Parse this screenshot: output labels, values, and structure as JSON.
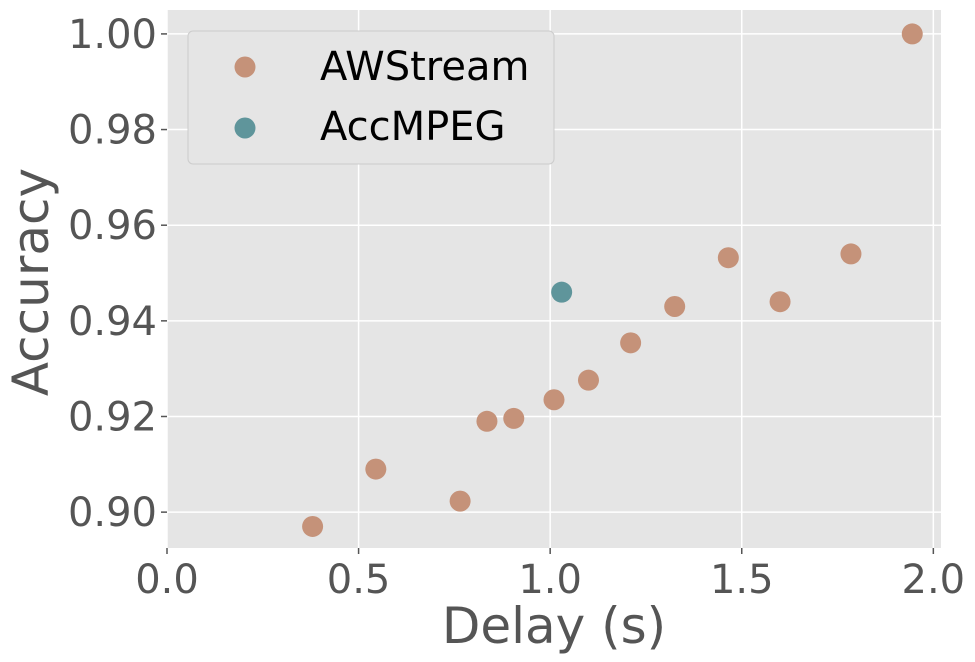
{
  "chart_data": {
    "type": "scatter",
    "title": "",
    "xlabel": "Delay (s)",
    "ylabel": "Accuracy",
    "xlim": [
      0.0,
      2.02
    ],
    "ylim": [
      0.8925,
      1.005
    ],
    "xticks": [
      "0.0",
      "0.5",
      "1.0",
      "1.5",
      "2.0"
    ],
    "yticks": [
      "0.90",
      "0.92",
      "0.94",
      "0.96",
      "0.98",
      "1.00"
    ],
    "grid": true,
    "legend_position": "top-left",
    "series": [
      {
        "name": "AWStream",
        "color": "#c59279",
        "points": [
          {
            "x": 0.38,
            "y": 0.897
          },
          {
            "x": 0.545,
            "y": 0.909
          },
          {
            "x": 0.765,
            "y": 0.9023
          },
          {
            "x": 0.835,
            "y": 0.919
          },
          {
            "x": 0.905,
            "y": 0.9196
          },
          {
            "x": 1.01,
            "y": 0.9235
          },
          {
            "x": 1.1,
            "y": 0.9276
          },
          {
            "x": 1.21,
            "y": 0.9354
          },
          {
            "x": 1.325,
            "y": 0.943
          },
          {
            "x": 1.465,
            "y": 0.9532
          },
          {
            "x": 1.6,
            "y": 0.944
          },
          {
            "x": 1.785,
            "y": 0.954
          },
          {
            "x": 1.945,
            "y": 1.0
          }
        ]
      },
      {
        "name": "AccMPEG",
        "color": "#5f959b",
        "points": [
          {
            "x": 1.03,
            "y": 0.946
          }
        ]
      }
    ]
  }
}
